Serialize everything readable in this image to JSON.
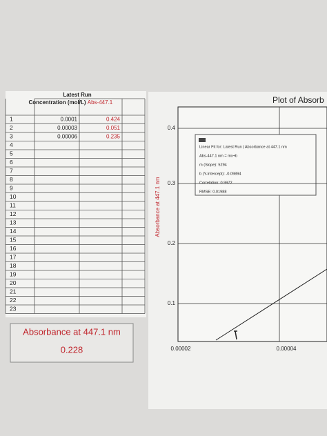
{
  "table": {
    "title": "Latest Run",
    "columns": [
      "Concentration (mol/L)",
      "Abs-447.1"
    ],
    "rows": [
      [
        "1",
        "0.0001",
        "0.424"
      ],
      [
        "2",
        "0.00003",
        "0.051"
      ],
      [
        "3",
        "0.00006",
        "0.235"
      ],
      [
        "4"
      ],
      [
        "5"
      ],
      [
        "6"
      ],
      [
        "7"
      ],
      [
        "8"
      ],
      [
        "9"
      ],
      [
        "10"
      ],
      [
        "11"
      ],
      [
        "12"
      ],
      [
        "13"
      ],
      [
        "14"
      ],
      [
        "15"
      ],
      [
        "16"
      ],
      [
        "17"
      ],
      [
        "18"
      ],
      [
        "19"
      ],
      [
        "20"
      ],
      [
        "21"
      ],
      [
        "22"
      ],
      [
        "23"
      ]
    ]
  },
  "meter": {
    "label": "Absorbance at 447.1 nm",
    "value": "0.228"
  },
  "plot": {
    "title": "Plot of Absorb",
    "y_label": "Absorbance at 447.1 nm",
    "yticks": [
      "0.4",
      "0.3",
      "0.2",
      "0.1"
    ],
    "xticks": [
      "0.00002",
      "0.00004"
    ],
    "fit": [
      "Linear Fit for: Latest Run | Absorbance at 447.1 nm",
      "Abs-447.1 nm = mx+b",
      "m (Slope): 5294",
      "b (Y-Intercept): -0.09894",
      "Correlation: 0.9972",
      "RMSE: 0.01988"
    ]
  }
}
